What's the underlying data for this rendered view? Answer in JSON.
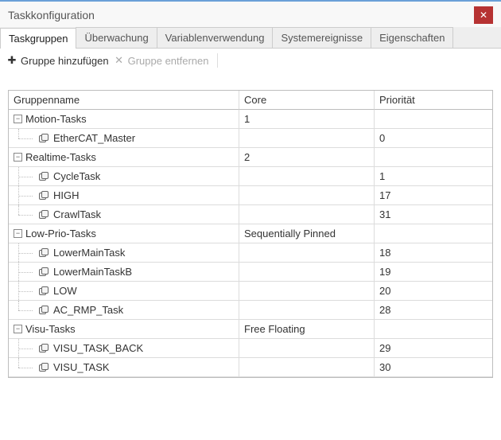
{
  "window": {
    "title": "Taskkonfiguration"
  },
  "tabs": [
    {
      "label": "Taskgruppen",
      "active": true
    },
    {
      "label": "Überwachung",
      "active": false
    },
    {
      "label": "Variablenverwendung",
      "active": false
    },
    {
      "label": "Systemereignisse",
      "active": false
    },
    {
      "label": "Eigenschaften",
      "active": false
    }
  ],
  "toolbar": {
    "add_group": {
      "glyph": "✚",
      "label": "Gruppe hinzufügen",
      "enabled": true
    },
    "remove_group": {
      "glyph": "✕",
      "label": "Gruppe entfernen",
      "enabled": false
    }
  },
  "columns": {
    "name": "Gruppenname",
    "core": "Core",
    "priority": "Priorität"
  },
  "tree": [
    {
      "name": "Motion-Tasks",
      "core": "1",
      "priority": "",
      "children": [
        {
          "name": "EtherCAT_Master",
          "core": "",
          "priority": "0"
        }
      ]
    },
    {
      "name": "Realtime-Tasks",
      "core": "2",
      "priority": "",
      "children": [
        {
          "name": "CycleTask",
          "core": "",
          "priority": "1"
        },
        {
          "name": "HIGH",
          "core": "",
          "priority": "17"
        },
        {
          "name": "CrawlTask",
          "core": "",
          "priority": "31"
        }
      ]
    },
    {
      "name": "Low-Prio-Tasks",
      "core": "Sequentially Pinned",
      "priority": "",
      "children": [
        {
          "name": "LowerMainTask",
          "core": "",
          "priority": "18"
        },
        {
          "name": "LowerMainTaskB",
          "core": "",
          "priority": "19"
        },
        {
          "name": "LOW",
          "core": "",
          "priority": "20"
        },
        {
          "name": "AC_RMP_Task",
          "core": "",
          "priority": "28"
        }
      ]
    },
    {
      "name": "Visu-Tasks",
      "core": "Free Floating",
      "priority": "",
      "children": [
        {
          "name": "VISU_TASK_BACK",
          "core": "",
          "priority": "29"
        },
        {
          "name": "VISU_TASK",
          "core": "",
          "priority": "30"
        }
      ]
    }
  ]
}
